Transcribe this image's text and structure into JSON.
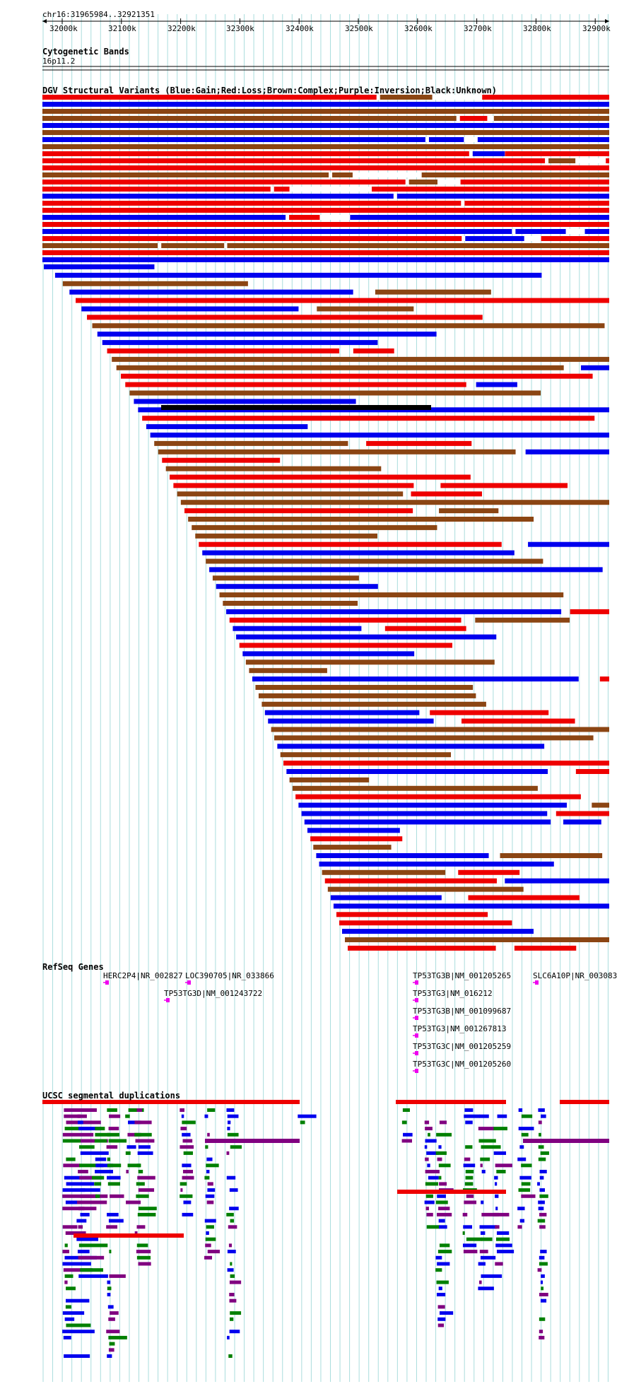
{
  "locus": "chr16:31965984..32921351",
  "ruler": {
    "ticks": [
      "32000k",
      "32100k",
      "32200k",
      "32300k",
      "32400k",
      "32500k",
      "32600k",
      "32700k",
      "32800k",
      "32900k"
    ]
  },
  "tracks": {
    "cytoband": {
      "title": "Cytogenetic Bands",
      "band": "16p11.2"
    },
    "dgv": {
      "title": "DGV Structural Variants (Blue:Gain;Red:Loss;Brown:Complex;Purple:Inversion;Black:Unknown)"
    },
    "refseq": {
      "title": "RefSeq Genes",
      "genes": [
        "HERC2P4|NR_002827",
        "LOC390705|NR_033866",
        "TP53TG3D|NM_001243722",
        "TP53TG3B|NM_001205265",
        "SLC6A10P|NR_003083",
        "TP53TG3|NM_016212",
        "TP53TG3B|NM_001099687",
        "TP53TG3|NM_001267813",
        "TP53TG3C|NM_001205259",
        "TP53TG3C|NM_001205260"
      ]
    },
    "segdups": {
      "title": "UCSC segmental duplications"
    }
  },
  "colors": {
    "gain": "#0000ee",
    "loss": "#ee0000",
    "complex": "#8b4513",
    "inversion": "#800080",
    "unknown": "#000000",
    "gene": "#ee00ee",
    "segdup_green": "#008000",
    "segdup_orange": "#ff8800",
    "grid": "#aadddd"
  }
}
